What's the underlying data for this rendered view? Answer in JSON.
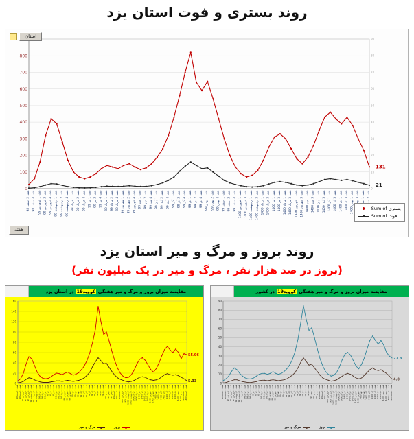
{
  "page": {
    "title1": "روند بستری و فوت استان یزد",
    "title2": "روند بروز و مرگ و میر استان یزد",
    "subtitle2": "(بروز در صد هزار نفر ، مرگ و میر در یک میلیون نفر)"
  },
  "colors": {
    "hospitalized_line": "#c00000",
    "death_line": "#262626",
    "yazd_incidence_line": "#d00000",
    "yazd_mortality_line": "#4a2013",
    "country_incidence_line": "#31859c",
    "country_mortality_line": "#553a2e",
    "subtitle_red": "#ff0000",
    "green_title_bar": "#00b050",
    "yellow_panel": "#ffff00",
    "gray_panel": "#d9d9d9"
  },
  "week_labels": [
    "هفته 2 اسفند 98",
    "هفته 4 اسفند 98",
    "هفته 1 فروردین 99",
    "هفته 2 فروردین 99",
    "هفته 4 فروردین 99",
    "هفته 1 اردیبهشت 99",
    "هفته 2 اردیبهشت 99",
    "هفته 4 اردیبهشت 99",
    "هفته 1 خرداد 99",
    "هفته 2 خرداد 99",
    "هفته 4 خرداد 99",
    "هفته 1 تیر 99",
    "هفته 2 تیر 99",
    "هفته 4 تیر 99",
    "هفته 1 مرداد 99",
    "هفته 2 مرداد 99",
    "هفته 4 مرداد 99",
    "هفته 1 شهریور 99",
    "هفته 2 شهریور 99",
    "هفته 4 شهریور 99",
    "هفته 1 مهر 99",
    "هفته 2 مهر 99",
    "هفته 4 مهر 99",
    "هفته 1 آبان 99",
    "هفته 2 آبان 99",
    "هفته 4 آبان 99",
    "هفته 1 آذر 99",
    "هفته 2 آذر 99",
    "هفته 4 آذر 99",
    "هفته 1 دی 99",
    "هفته 2 دی 99",
    "هفته 4 دی 99",
    "هفته 1 بهمن 99",
    "هفته 2 بهمن 99",
    "هفته 4 بهمن 99",
    "هفته 1 اسفند 99",
    "هفته 2 اسفند 99",
    "هفته 4 اسفند 99",
    "هفته 1 فروردین 1400",
    "هفته 3 فروردین 1400",
    "هفته 1 اردیبهشت 1400",
    "هفته 3 اردیبهشت 1400",
    "هفته 1 خرداد 1400",
    "هفته 3 خرداد 1400",
    "هفته 1 تیر 1400",
    "هفته 3 تیر 1400",
    "هفته 1 مرداد 1400",
    "هفته 3 مرداد 1400",
    "هفته 1 شهریور 1400",
    "هفته 3 شهریور 1400",
    "هفته 1 مهر 1400",
    "هفته 3 مهر 1400",
    "هفته 1 آبان 1400",
    "هفته 3 آبان 1400",
    "هفته 1 آذر 1400",
    "هفته 3 آذر 1400",
    "هفته 1 دی 1400",
    "هفته 3 دی 1400",
    "هفته 1 بهمن 1400",
    "هفته 3 بهمن 1400",
    "هفته 1 اسفند 1400",
    "هفته 2 اسفند 1400"
  ],
  "chart_data": [
    {
      "type": "line",
      "title": "",
      "xlabel": "هفته",
      "ylabel": "",
      "ylim": [
        0,
        900
      ],
      "yticks": [
        0,
        100,
        200,
        300,
        400,
        500,
        600,
        700,
        800,
        900
      ],
      "y2ticks": [
        0,
        10,
        20,
        30,
        40,
        50,
        60,
        70,
        80,
        90
      ],
      "grid": true,
      "legend_position": "right-bottom",
      "categories": "shared:week_labels",
      "pivot_buttons": {
        "filter": "استان",
        "axis": "هفته"
      },
      "series": [
        {
          "name": "Sum of بستری",
          "color": "#c00000",
          "end_label": "131",
          "values": [
            25,
            60,
            160,
            320,
            420,
            390,
            280,
            170,
            100,
            70,
            60,
            70,
            90,
            120,
            140,
            130,
            120,
            140,
            150,
            130,
            115,
            125,
            150,
            190,
            240,
            320,
            430,
            560,
            700,
            820,
            640,
            590,
            645,
            540,
            420,
            300,
            200,
            130,
            90,
            70,
            80,
            110,
            170,
            250,
            310,
            330,
            300,
            240,
            180,
            150,
            190,
            260,
            350,
            430,
            460,
            420,
            390,
            430,
            380,
            300,
            230,
            131
          ]
        },
        {
          "name": "Sum of فوت",
          "color": "#262626",
          "end_label": "21",
          "values": [
            3,
            6,
            12,
            22,
            30,
            28,
            20,
            12,
            8,
            6,
            5,
            6,
            8,
            12,
            15,
            14,
            13,
            15,
            18,
            15,
            13,
            14,
            18,
            25,
            35,
            50,
            70,
            105,
            135,
            160,
            140,
            120,
            125,
            100,
            75,
            50,
            35,
            25,
            18,
            12,
            10,
            12,
            18,
            28,
            38,
            42,
            38,
            30,
            22,
            18,
            22,
            30,
            42,
            55,
            60,
            55,
            50,
            55,
            48,
            38,
            30,
            21
          ]
        }
      ]
    },
    {
      "type": "line",
      "title": "مقایسه میزان بروز و مرگ و میر هفتگی کووید19 در استان یزد",
      "title_parts": {
        "pre": "مقایسه میزان بروز و مرگ و میر هفتگی",
        "hl": "کووید19",
        "post": "در استان یزد"
      },
      "xlabel": "هفته",
      "ylabel": "",
      "ylim": [
        0,
        160
      ],
      "yticks": [
        0,
        20,
        40,
        60,
        80,
        100,
        120,
        140,
        160
      ],
      "grid": true,
      "legend_position": "bottom",
      "categories": "shared:week_labels",
      "series": [
        {
          "name": "بروز",
          "color": "#d00000",
          "end_label": "55.96",
          "values": [
            5,
            9,
            20,
            38,
            52,
            48,
            35,
            22,
            14,
            10,
            9,
            10,
            13,
            17,
            20,
            19,
            17,
            20,
            22,
            19,
            16,
            18,
            21,
            27,
            34,
            45,
            60,
            80,
            105,
            150,
            120,
            95,
            100,
            82,
            62,
            44,
            30,
            20,
            14,
            11,
            12,
            17,
            26,
            38,
            47,
            50,
            45,
            36,
            27,
            22,
            29,
            40,
            54,
            66,
            72,
            65,
            60,
            67,
            60,
            48,
            58,
            55.96
          ]
        },
        {
          "name": "مرگ و میر",
          "color": "#4a2013",
          "end_label": "5.33",
          "values": [
            1,
            2,
            4,
            8,
            11,
            10,
            7,
            5,
            3,
            2,
            2,
            2,
            3,
            4,
            5,
            5,
            4,
            5,
            6,
            5,
            4,
            5,
            6,
            8,
            11,
            16,
            22,
            33,
            42,
            50,
            44,
            38,
            39,
            31,
            23,
            16,
            11,
            8,
            6,
            4,
            3,
            4,
            6,
            9,
            12,
            13,
            12,
            9,
            7,
            6,
            7,
            9,
            13,
            17,
            19,
            17,
            16,
            17,
            15,
            12,
            9,
            5.33
          ]
        }
      ]
    },
    {
      "type": "line",
      "title": "مقایسه میزان بروز و مرگ و میر هفتگی کووید19 در کشور",
      "title_parts": {
        "pre": "مقایسه میزان بروز و مرگ و میر هفتگی",
        "hl": "کووید19",
        "post": "در کشور"
      },
      "xlabel": "هفته",
      "ylabel": "",
      "ylim": [
        0,
        90
      ],
      "yticks": [
        0,
        10,
        20,
        30,
        40,
        50,
        60,
        70,
        80,
        90
      ],
      "grid": true,
      "legend_position": "bottom",
      "categories": "shared:week_labels",
      "series": [
        {
          "name": "بروز",
          "color": "#31859c",
          "end_label": "27.8",
          "values": [
            3,
            5,
            8,
            13,
            17,
            15,
            11,
            8,
            6,
            5,
            5,
            6,
            8,
            10,
            11,
            11,
            10,
            11,
            13,
            11,
            10,
            11,
            13,
            16,
            20,
            26,
            35,
            48,
            66,
            85,
            70,
            58,
            61,
            50,
            38,
            27,
            19,
            13,
            10,
            8,
            9,
            12,
            18,
            26,
            32,
            34,
            31,
            25,
            19,
            16,
            21,
            28,
            38,
            47,
            52,
            47,
            43,
            47,
            42,
            34,
            30,
            27.8
          ]
        },
        {
          "name": "مرگ و میر",
          "color": "#553a2e",
          "end_label": "4.8",
          "values": [
            0.5,
            1,
            2,
            3,
            4,
            4,
            3,
            2,
            1.5,
            1,
            1,
            1.5,
            2,
            3,
            3.5,
            3.5,
            3,
            3.5,
            4,
            3.5,
            3,
            3.5,
            4,
            5,
            7,
            9,
            12,
            17,
            23,
            28,
            24,
            20,
            21,
            17,
            13,
            9,
            6,
            4.5,
            3.5,
            2.5,
            3,
            4,
            6,
            8,
            10,
            11,
            10,
            8,
            6,
            5,
            6,
            9,
            12,
            15,
            17,
            15,
            14,
            15,
            13,
            11,
            8,
            4.8
          ]
        }
      ]
    }
  ]
}
